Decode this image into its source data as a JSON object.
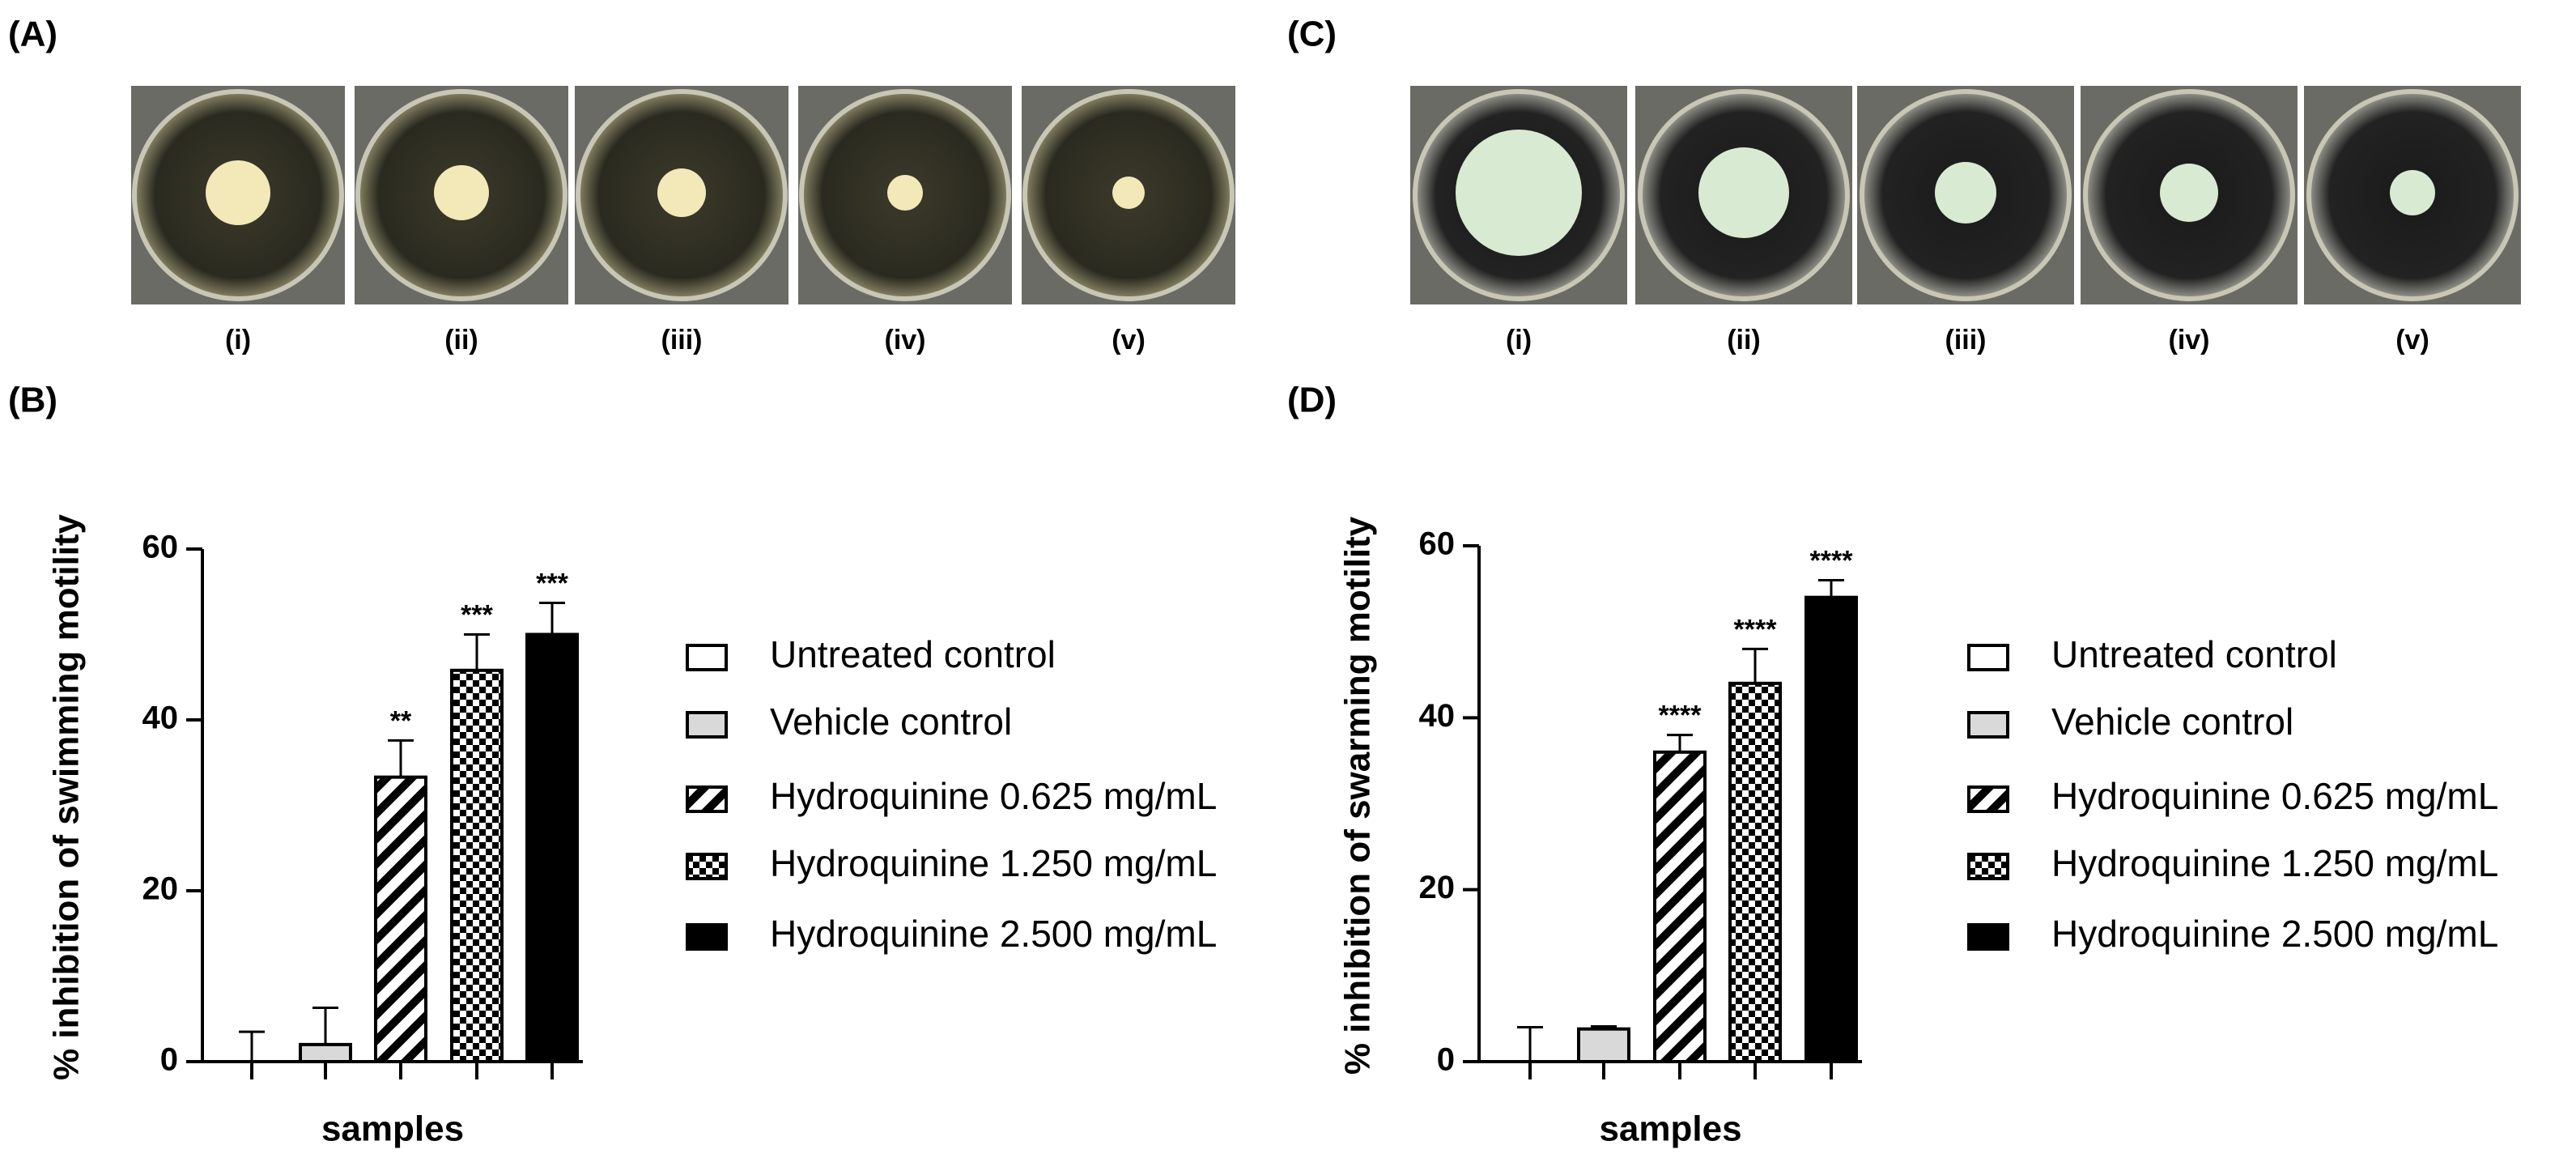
{
  "panel_labels": [
    "(A)",
    "(B)",
    "(C)",
    "(D)"
  ],
  "photo_captions": {
    "A": [
      "(i)",
      "(ii)",
      "(iii)",
      "(iv)",
      "(v)"
    ],
    "C": [
      "(i)",
      "(ii)",
      "(iii)",
      "(iv)",
      "(v)"
    ]
  },
  "chart_data": [
    {
      "type": "bar",
      "ylabel": "% inhibition of swimming motility",
      "xlabel": "samples",
      "ylim": [
        0,
        60
      ],
      "yticks": [
        0,
        20,
        40,
        60
      ],
      "series": [
        {
          "name": "Untreated control",
          "color": "#ffffff",
          "pattern": "solid",
          "values": [
            0
          ],
          "errors": [
            3.5
          ]
        },
        {
          "name": "Vehicle control",
          "color": "#d9d9d9",
          "pattern": "solid",
          "values": [
            2
          ],
          "errors": [
            4.3
          ]
        },
        {
          "name": "Hydroquinine 0.625 mg/mL",
          "color": "#ffffff",
          "pattern": "hatch",
          "values": [
            33.3
          ],
          "errors": [
            4.3
          ],
          "annotation": "**"
        },
        {
          "name": "Hydroquinine 1.250 mg/mL",
          "color": "#ffffff",
          "pattern": "checker",
          "values": [
            45.8
          ],
          "errors": [
            4.2
          ],
          "annotation": "***"
        },
        {
          "name": "Hydroquinine 2.500 mg/mL",
          "color": "#000000",
          "pattern": "solid",
          "values": [
            50
          ],
          "errors": [
            3.7
          ],
          "annotation": "***"
        }
      ]
    },
    {
      "type": "bar",
      "ylabel": "% inhibition of swarming motility",
      "xlabel": "samples",
      "ylim": [
        0,
        60
      ],
      "yticks": [
        0,
        20,
        40,
        60
      ],
      "series": [
        {
          "name": "Untreated control",
          "color": "#ffffff",
          "pattern": "solid",
          "values": [
            0
          ],
          "errors": [
            4
          ]
        },
        {
          "name": "Vehicle control",
          "color": "#d9d9d9",
          "pattern": "solid",
          "values": [
            3.8
          ],
          "errors": [
            0.3
          ]
        },
        {
          "name": "Hydroquinine 0.625 mg/mL",
          "color": "#ffffff",
          "pattern": "hatch",
          "values": [
            36
          ],
          "errors": [
            2
          ],
          "annotation": "****"
        },
        {
          "name": "Hydroquinine 1.250 mg/mL",
          "color": "#ffffff",
          "pattern": "checker",
          "values": [
            44
          ],
          "errors": [
            4
          ],
          "annotation": "****"
        },
        {
          "name": "Hydroquinine 2.500 mg/mL",
          "color": "#000000",
          "pattern": "solid",
          "values": [
            54
          ],
          "errors": [
            2
          ],
          "annotation": "****"
        }
      ]
    }
  ]
}
